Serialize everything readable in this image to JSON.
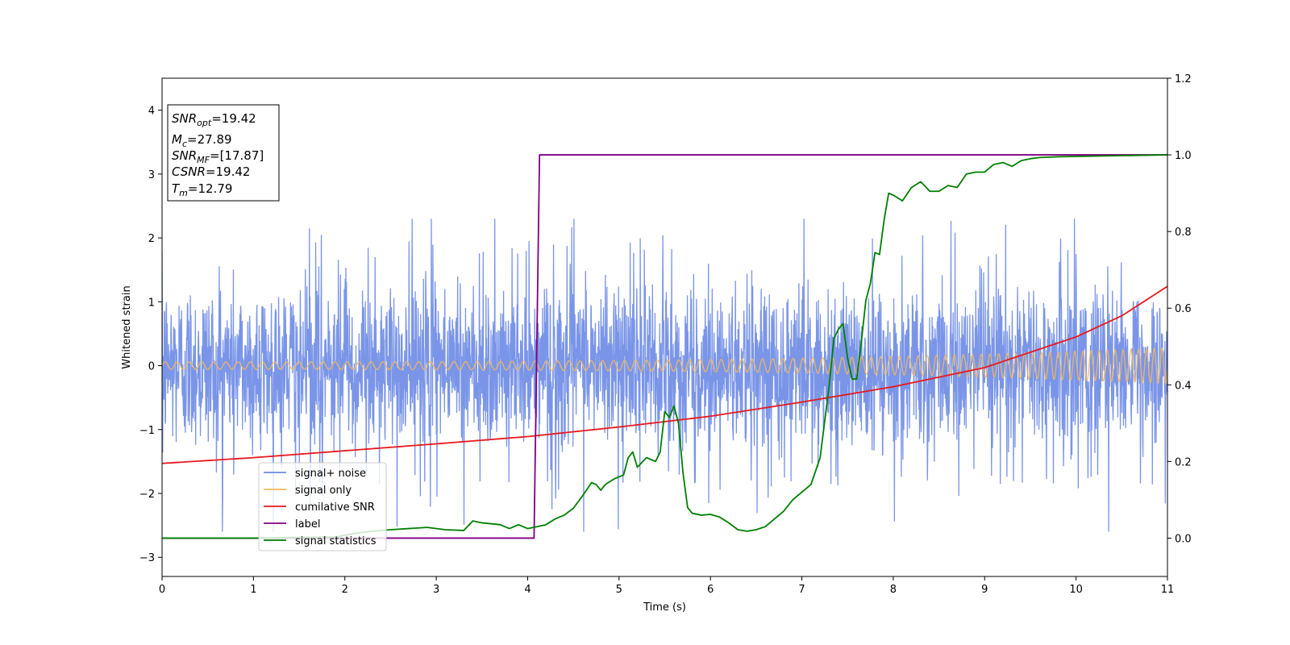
{
  "chart_data": {
    "type": "line",
    "xlabel": "Time (s)",
    "ylabel": "Whitened strain",
    "xlim": [
      0,
      11
    ],
    "ylim": [
      -3.3,
      4.5
    ],
    "y2lim": [
      -0.1,
      1.2
    ],
    "x_ticks": [
      "0",
      "1",
      "2",
      "3",
      "4",
      "5",
      "6",
      "7",
      "8",
      "9",
      "10",
      "11"
    ],
    "y_ticks": [
      "−3",
      "−2",
      "−1",
      "0",
      "1",
      "2",
      "3",
      "4"
    ],
    "y2_ticks": [
      "0.0",
      "0.2",
      "0.4",
      "0.6",
      "0.8",
      "1.0",
      "1.2"
    ],
    "legend": {
      "placement": "lower-left",
      "entries": [
        {
          "label": "signal+ noise",
          "color": "#6b8ae6"
        },
        {
          "label": "signal only",
          "color": "#f5b85a"
        },
        {
          "label": "cumilative SNR",
          "color": "#e8191c"
        },
        {
          "label": "label",
          "color": "#800080"
        },
        {
          "label": "signal statistics",
          "color": "#007f00"
        }
      ]
    },
    "info_box": {
      "snr_opt": {
        "base": "SNR",
        "sub": "opt",
        "value": "=19.42"
      },
      "mc": {
        "base": "M",
        "sub": "c",
        "value": "=27.89"
      },
      "snr_mf": {
        "base": "SNR",
        "sub": "MF",
        "value": "=[17.87]"
      },
      "csnr": {
        "base": "CSNR",
        "value": "=19.42"
      },
      "tm": {
        "base": "T",
        "sub": "m",
        "value": "=12.79"
      }
    },
    "series": [
      {
        "name": "signal+ noise",
        "axis": "left",
        "noise_std": 0.65,
        "band_range": [
          -1.6,
          1.6
        ],
        "x_range": [
          0,
          11
        ]
      },
      {
        "name": "signal only",
        "axis": "left",
        "amplitude_start": 0.06,
        "amplitude_end": 0.28,
        "x_range": [
          0,
          11
        ]
      },
      {
        "name": "cumilative SNR",
        "axis": "right",
        "x": [
          0,
          1,
          2,
          3,
          4,
          5,
          6,
          7,
          8,
          9,
          10,
          10.5,
          11
        ],
        "values": [
          0.195,
          0.21,
          0.228,
          0.246,
          0.265,
          0.29,
          0.318,
          0.355,
          0.395,
          0.445,
          0.525,
          0.58,
          0.657
        ]
      },
      {
        "name": "label",
        "axis": "right",
        "x": [
          0,
          4.07,
          4.13,
          11
        ],
        "values": [
          0,
          0,
          1,
          1
        ]
      },
      {
        "name": "signal statistics",
        "axis": "right",
        "x": [
          0,
          1,
          1.5,
          1.9,
          2.1,
          2.3,
          2.5,
          2.7,
          2.9,
          3.1,
          3.3,
          3.4,
          3.5,
          3.7,
          3.8,
          3.9,
          4.0,
          4.2,
          4.3,
          4.4,
          4.5,
          4.6,
          4.7,
          4.75,
          4.8,
          4.85,
          4.95,
          5.0,
          5.05,
          5.1,
          5.15,
          5.2,
          5.3,
          5.4,
          5.45,
          5.5,
          5.55,
          5.6,
          5.65,
          5.7,
          5.75,
          5.8,
          5.9,
          6.0,
          6.1,
          6.2,
          6.3,
          6.4,
          6.5,
          6.6,
          6.7,
          6.8,
          6.9,
          7.0,
          7.1,
          7.2,
          7.3,
          7.35,
          7.4,
          7.45,
          7.5,
          7.55,
          7.6,
          7.65,
          7.7,
          7.75,
          7.8,
          7.85,
          7.9,
          7.95,
          8.0,
          8.1,
          8.2,
          8.3,
          8.4,
          8.5,
          8.6,
          8.7,
          8.8,
          8.9,
          9.0,
          9.1,
          9.2,
          9.3,
          9.4,
          9.5,
          9.6,
          9.8,
          10.0,
          10.5,
          11.0
        ],
        "values": [
          0,
          0,
          0.002,
          0.003,
          0.012,
          0.018,
          0.022,
          0.025,
          0.028,
          0.022,
          0.02,
          0.045,
          0.04,
          0.035,
          0.025,
          0.035,
          0.025,
          0.035,
          0.05,
          0.06,
          0.078,
          0.11,
          0.145,
          0.14,
          0.125,
          0.14,
          0.155,
          0.16,
          0.165,
          0.21,
          0.225,
          0.185,
          0.21,
          0.2,
          0.225,
          0.33,
          0.315,
          0.345,
          0.3,
          0.17,
          0.08,
          0.065,
          0.06,
          0.062,
          0.055,
          0.04,
          0.022,
          0.018,
          0.022,
          0.03,
          0.05,
          0.07,
          0.1,
          0.12,
          0.14,
          0.21,
          0.4,
          0.52,
          0.545,
          0.56,
          0.47,
          0.415,
          0.415,
          0.51,
          0.62,
          0.665,
          0.745,
          0.74,
          0.83,
          0.9,
          0.895,
          0.88,
          0.915,
          0.93,
          0.905,
          0.905,
          0.92,
          0.915,
          0.95,
          0.955,
          0.955,
          0.975,
          0.98,
          0.97,
          0.985,
          0.99,
          0.993,
          0.995,
          0.996,
          0.998,
          1.0
        ]
      }
    ]
  }
}
